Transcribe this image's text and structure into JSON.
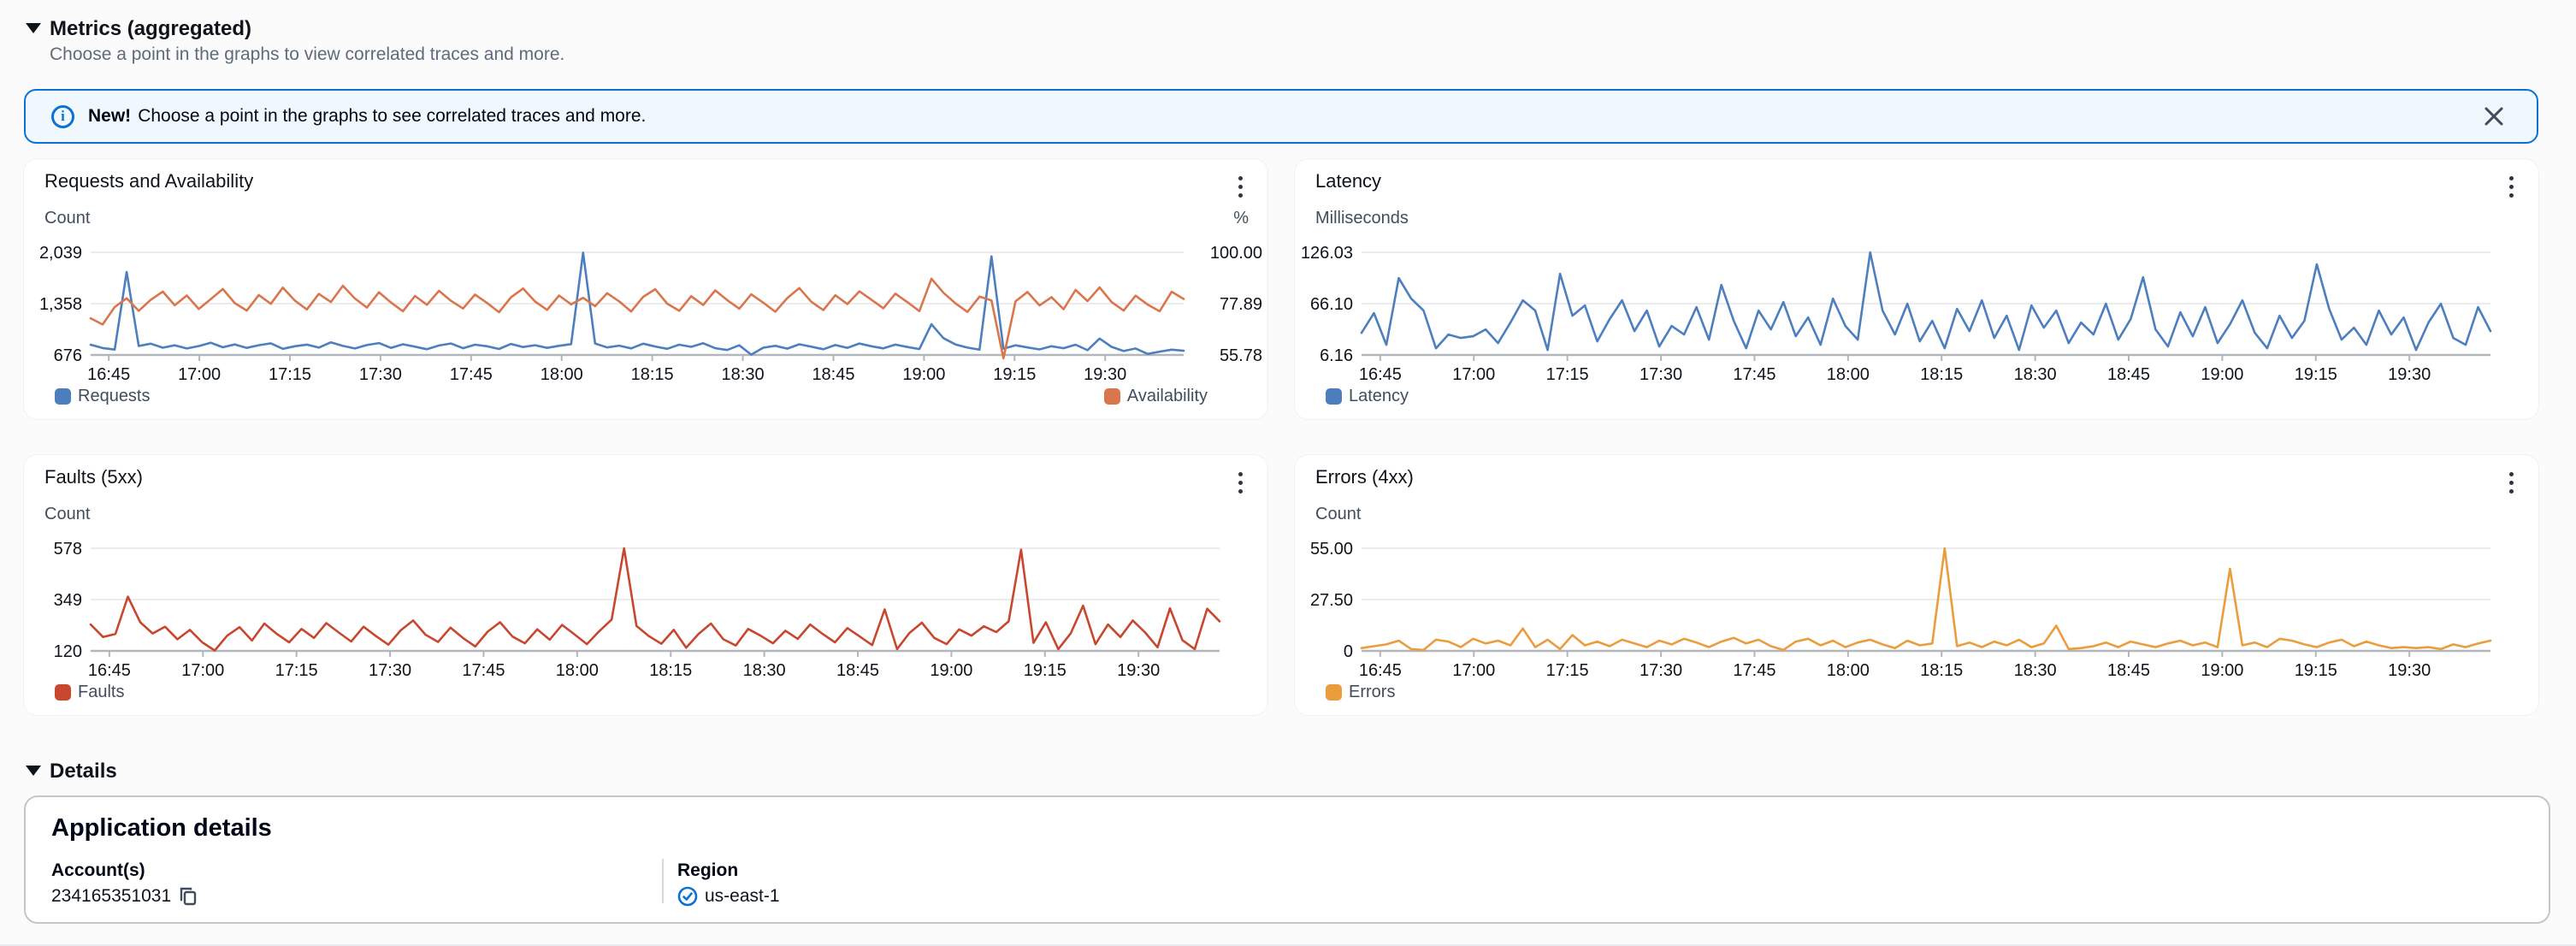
{
  "metrics_section": {
    "title": "Metrics (aggregated)",
    "subtitle": "Choose a point in the graphs to view correlated traces and more."
  },
  "banner": {
    "bold_text": "New!",
    "message": "Choose a point in the graphs to see correlated traces and more.",
    "border_color": "#0972d3",
    "background": "#f0f7fd"
  },
  "details_section": {
    "title": "Details",
    "card_title": "Application details",
    "fields": [
      {
        "label": "Account(s)",
        "value": "234165351031",
        "icon": "copy-icon"
      },
      {
        "label": "Region",
        "value": "us-east-1",
        "icon": "check-circle-icon"
      }
    ],
    "accent_color": "#0972d3"
  },
  "chart_data": [
    {
      "type": "line",
      "title": "Requests and Availability",
      "x_start": "16:40",
      "x_end": "19:42",
      "x_interval_min": 2,
      "x_ticks": [
        "16:45",
        "17:00",
        "17:15",
        "17:30",
        "17:45",
        "18:00",
        "18:15",
        "18:30",
        "18:45",
        "19:00",
        "19:15",
        "19:30"
      ],
      "left_axis": {
        "label": "Count",
        "ticks": [
          "2,039",
          "1,358",
          "676"
        ],
        "min": 676,
        "max": 2039
      },
      "right_axis": {
        "label": "%",
        "ticks": [
          "100.00",
          "77.89",
          "55.78"
        ],
        "min": 55.78,
        "max": 100
      },
      "grid": true,
      "legend_position": "bottom",
      "series": [
        {
          "name": "Requests",
          "axis": "left",
          "color": "#4d7fbe",
          "values": [
            812,
            768,
            748,
            1778,
            795,
            826,
            772,
            804,
            762,
            794,
            838,
            778,
            816,
            770,
            806,
            830,
            758,
            792,
            814,
            774,
            844,
            796,
            762,
            808,
            834,
            770,
            818,
            786,
            752,
            802,
            828,
            766,
            812,
            792,
            756,
            822,
            782,
            806,
            770,
            798,
            820,
            2035,
            828,
            776,
            800,
            764,
            826,
            788,
            758,
            812,
            784,
            832,
            766,
            742,
            804,
            680,
            772,
            798,
            760,
            818,
            786,
            752,
            808,
            770,
            828,
            792,
            764,
            814,
            782,
            754,
            1084,
            900,
            816,
            774,
            746,
            1986,
            760,
            804,
            776,
            750,
            792,
            766,
            812,
            740,
            894,
            784,
            728,
            762,
            690,
            720,
            746,
            732
          ]
        },
        {
          "name": "Availability",
          "axis": "right",
          "color": "#d9764d",
          "values": [
            71.6,
            68.9,
            76.4,
            80.2,
            74.8,
            79.5,
            83.1,
            77.2,
            81.4,
            75.6,
            79.8,
            84.2,
            78.1,
            74.9,
            81.6,
            77.8,
            84.8,
            79.2,
            75.4,
            82.1,
            78.6,
            85.6,
            80.1,
            76.2,
            82.8,
            78.4,
            74.6,
            81.2,
            77.4,
            83.4,
            79.1,
            75.8,
            81.8,
            78.2,
            74.2,
            80.6,
            84.4,
            78.8,
            75.2,
            81.4,
            77.6,
            80.4,
            76.8,
            82.4,
            78.9,
            74.5,
            80.8,
            84.1,
            77.9,
            74.8,
            81.1,
            77.3,
            83.6,
            79.4,
            75.7,
            81.9,
            78.3,
            74.4,
            80.3,
            84.6,
            78.7,
            75.1,
            81.5,
            77.7,
            83.2,
            79.6,
            75.9,
            82.2,
            78.5,
            74.7,
            88.6,
            82.6,
            78.0,
            74.3,
            80.9,
            79.3,
            54.2,
            78.9,
            82.9,
            77.1,
            80.7,
            75.5,
            83.8,
            79.0,
            84.9,
            78.6,
            74.9,
            81.3,
            77.5,
            74.6,
            83.0,
            79.9
          ]
        }
      ]
    },
    {
      "type": "line",
      "title": "Latency",
      "x_start": "16:40",
      "x_end": "19:42",
      "x_interval_min": 2,
      "x_ticks": [
        "16:45",
        "17:00",
        "17:15",
        "17:30",
        "17:45",
        "18:00",
        "18:15",
        "18:30",
        "18:45",
        "19:00",
        "19:15",
        "19:30"
      ],
      "left_axis": {
        "label": "Milliseconds",
        "ticks": [
          "126.03",
          "66.10",
          "6.16"
        ],
        "min": 6.16,
        "max": 126.03
      },
      "grid": true,
      "legend_position": "bottom",
      "series": [
        {
          "name": "Latency",
          "axis": "left",
          "color": "#4d7fbe",
          "values": [
            32,
            55,
            18,
            96,
            72,
            58,
            14,
            30,
            26,
            28,
            36,
            20,
            44,
            70,
            58,
            12,
            101,
            52,
            64,
            22,
            48,
            70,
            34,
            58,
            16,
            40,
            30,
            62,
            24,
            88,
            46,
            14,
            58,
            36,
            68,
            28,
            50,
            18,
            72,
            40,
            24,
            126,
            58,
            30,
            66,
            22,
            46,
            14,
            60,
            34,
            70,
            26,
            52,
            12,
            64,
            38,
            58,
            20,
            44,
            30,
            66,
            24,
            48,
            97,
            36,
            16,
            56,
            28,
            62,
            20,
            42,
            70,
            32,
            14,
            52,
            26,
            46,
            112,
            60,
            24,
            38,
            18,
            58,
            30,
            50,
            12,
            44,
            66,
            26,
            18,
            62,
            34
          ]
        }
      ]
    },
    {
      "type": "line",
      "title": "Faults (5xx)",
      "x_start": "16:40",
      "x_end": "19:42",
      "x_interval_min": 2,
      "x_ticks": [
        "16:45",
        "17:00",
        "17:15",
        "17:30",
        "17:45",
        "18:00",
        "18:15",
        "18:30",
        "18:45",
        "19:00",
        "19:15",
        "19:30"
      ],
      "left_axis": {
        "label": "Count",
        "ticks": [
          "578",
          "349",
          "120"
        ],
        "min": 120,
        "max": 578
      },
      "grid": true,
      "legend_position": "bottom",
      "series": [
        {
          "name": "Faults",
          "axis": "left",
          "color": "#c8472f",
          "values": [
            238,
            182,
            196,
            362,
            248,
            198,
            228,
            172,
            214,
            158,
            122,
            188,
            226,
            166,
            242,
            196,
            158,
            218,
            178,
            244,
            202,
            162,
            228,
            186,
            148,
            212,
            256,
            192,
            160,
            224,
            178,
            140,
            206,
            248,
            184,
            154,
            216,
            170,
            236,
            194,
            150,
            208,
            260,
            578,
            232,
            186,
            152,
            214,
            134,
            196,
            242,
            172,
            144,
            218,
            188,
            154,
            210,
            174,
            238,
            196,
            158,
            222,
            184,
            146,
            305,
            128,
            200,
            246,
            178,
            150,
            216,
            188,
            230,
            204,
            252,
            572,
            156,
            248,
            128,
            198,
            322,
            150,
            238,
            182,
            256,
            202,
            136,
            310,
            168,
            128,
            308,
            252
          ]
        }
      ]
    },
    {
      "type": "line",
      "title": "Errors (4xx)",
      "x_start": "16:40",
      "x_end": "19:42",
      "x_interval_min": 2,
      "x_ticks": [
        "16:45",
        "17:00",
        "17:15",
        "17:30",
        "17:45",
        "18:00",
        "18:15",
        "18:30",
        "18:45",
        "19:00",
        "19:15",
        "19:30"
      ],
      "left_axis": {
        "label": "Count",
        "ticks": [
          "55.00",
          "27.50",
          "0"
        ],
        "min": 0,
        "max": 55
      },
      "grid": true,
      "legend_position": "bottom",
      "series": [
        {
          "name": "Errors",
          "axis": "left",
          "color": "#eb9d3e",
          "values": [
            1.5,
            2.5,
            3.5,
            5.5,
            1,
            0.5,
            6,
            5,
            2,
            6.5,
            4,
            5.5,
            3,
            12,
            2,
            6,
            1,
            8.5,
            3,
            5,
            2.5,
            6,
            4,
            2,
            5.5,
            3.5,
            6.5,
            4.5,
            2,
            5,
            7,
            4,
            6,
            2.5,
            0.5,
            5,
            6.5,
            3,
            5.5,
            2,
            4.5,
            6,
            3.5,
            1.5,
            5.5,
            3,
            4,
            55,
            2.5,
            4.5,
            2,
            5,
            3,
            6,
            2,
            4,
            13.5,
            1,
            1.5,
            2.5,
            4.5,
            2,
            5,
            3.5,
            2,
            4,
            5.5,
            3,
            4.5,
            2,
            44,
            3,
            4.5,
            2,
            6.5,
            5.5,
            3.5,
            2,
            4.5,
            6,
            2.5,
            5,
            3,
            1.5,
            2,
            1.5,
            2,
            1,
            3.5,
            2,
            4,
            5.5
          ]
        }
      ]
    }
  ]
}
